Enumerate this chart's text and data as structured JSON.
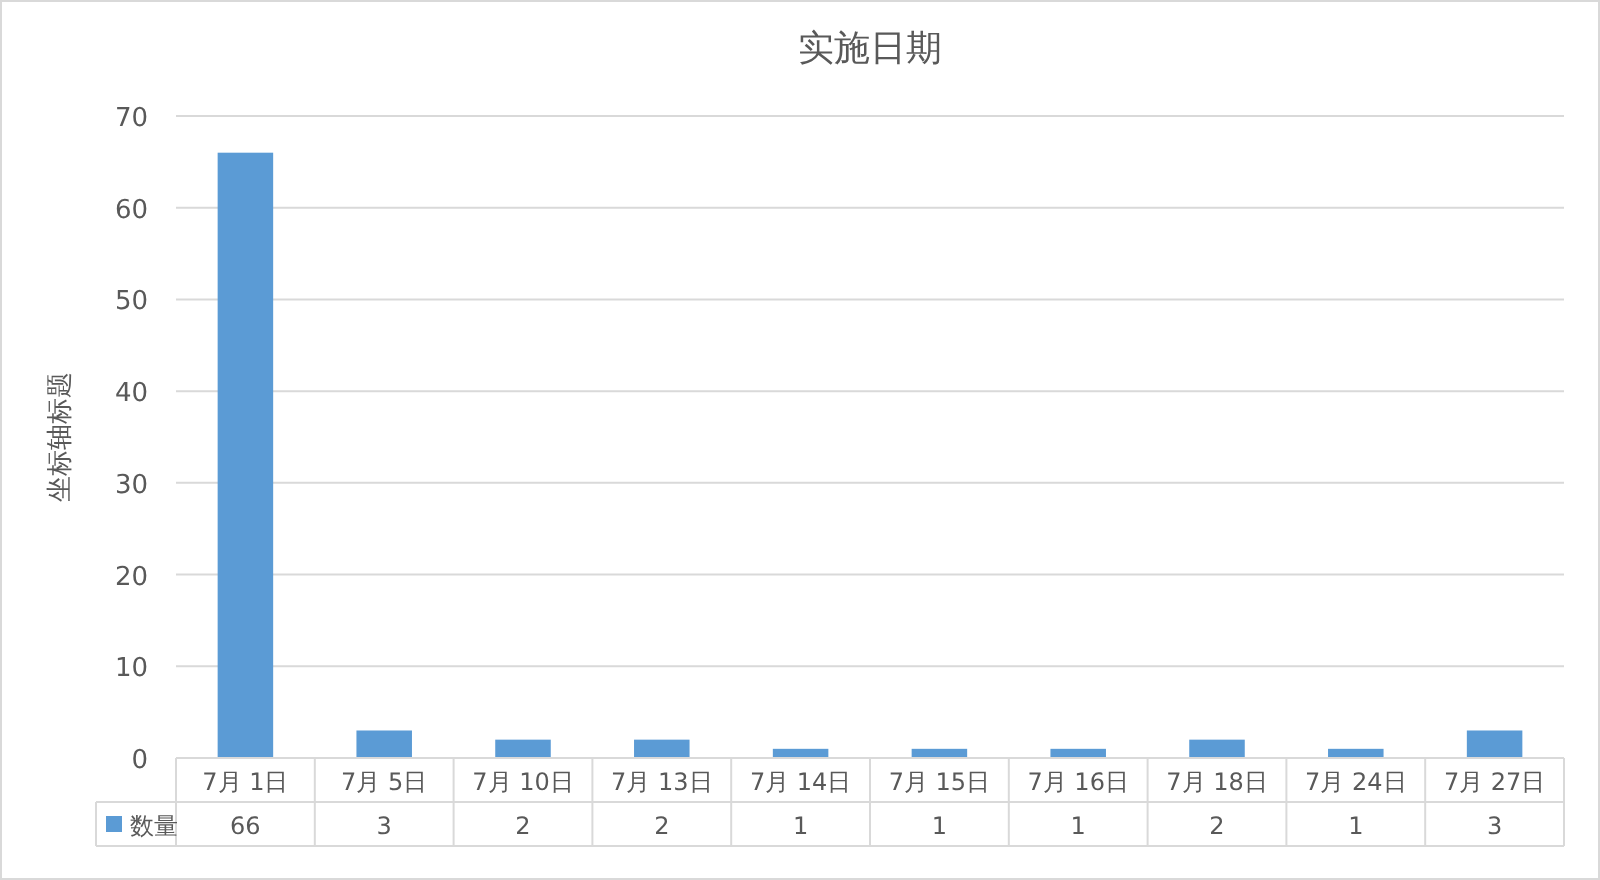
{
  "chart_data": {
    "type": "bar",
    "title": "实施日期",
    "ylabel": "坐标轴标题",
    "categories": [
      "7月 1日",
      "7月 5日",
      "7月 10日",
      "7月 13日",
      "7月 14日",
      "7月 15日",
      "7月 16日",
      "7月 18日",
      "7月 24日",
      "7月 27日"
    ],
    "series": [
      {
        "name": "数量",
        "color": "#5b9bd5",
        "values": [
          66,
          3,
          2,
          2,
          1,
          1,
          1,
          2,
          1,
          3
        ]
      }
    ],
    "ylim": [
      0,
      70
    ],
    "yticks": [
      0,
      10,
      20,
      30,
      40,
      50,
      60,
      70
    ],
    "grid": "y",
    "legend": "bottom",
    "data_labels": true
  }
}
